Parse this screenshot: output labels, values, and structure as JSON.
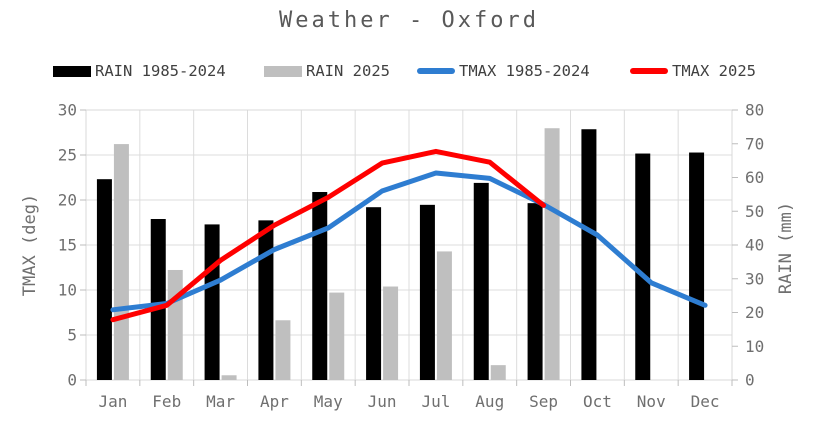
{
  "title": "Weather - Oxford",
  "legend": [
    {
      "label": "RAIN 1985-2024",
      "type": "bar",
      "color": "#000000"
    },
    {
      "label": "RAIN 2025",
      "type": "bar",
      "color": "#bfbfbf"
    },
    {
      "label": "TMAX 1985-2024",
      "type": "line",
      "color": "#2e7dd1"
    },
    {
      "label": "TMAX 2025",
      "type": "line",
      "color": "#ff0000"
    }
  ],
  "axes": {
    "left": {
      "label": "TMAX (deg)"
    },
    "right": {
      "label": "RAIN (mm)"
    }
  },
  "chart_data": {
    "type": "bar+line",
    "title": "Weather - Oxford",
    "categories": [
      "Jan",
      "Feb",
      "Mar",
      "Apr",
      "May",
      "Jun",
      "Jul",
      "Aug",
      "Sep",
      "Oct",
      "Nov",
      "Dec"
    ],
    "series": [
      {
        "name": "RAIN 1985-2024",
        "type": "bar",
        "axis": "right",
        "color": "#000000",
        "values": [
          59.5,
          47.7,
          46.1,
          47.3,
          55.7,
          51.2,
          51.9,
          58.4,
          52.4,
          74.3,
          67.1,
          67.4
        ]
      },
      {
        "name": "RAIN 2025",
        "type": "bar",
        "axis": "right",
        "color": "#bfbfbf",
        "values": [
          69.9,
          32.6,
          1.4,
          17.7,
          25.9,
          27.7,
          38.1,
          4.4,
          74.6,
          null,
          null,
          null
        ]
      },
      {
        "name": "TMAX 1985-2024",
        "type": "line",
        "axis": "left",
        "color": "#2e7dd1",
        "values": [
          7.8,
          8.5,
          11.1,
          14.5,
          16.9,
          21.0,
          23.0,
          22.4,
          19.5,
          16.1,
          10.8,
          8.3
        ]
      },
      {
        "name": "TMAX 2025",
        "type": "line",
        "axis": "left",
        "color": "#ff0000",
        "values": [
          6.7,
          8.3,
          13.3,
          17.2,
          20.3,
          24.1,
          25.4,
          24.2,
          19.4,
          null,
          null,
          null
        ]
      }
    ],
    "y_left": {
      "label": "TMAX (deg)",
      "min": 0,
      "max": 30,
      "tick_step": 5
    },
    "y_right": {
      "label": "RAIN (mm)",
      "min": 0,
      "max": 80,
      "tick_step": 10
    },
    "grid": true,
    "legend_position": "top"
  }
}
